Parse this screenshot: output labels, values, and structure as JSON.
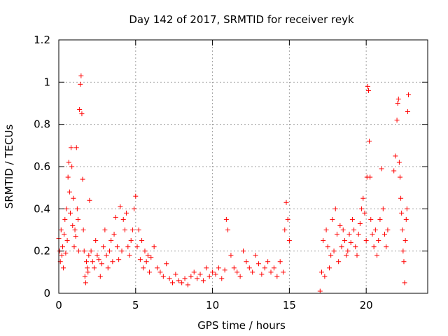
{
  "chart_data": {
    "type": "scatter",
    "title": "Day 142 of 2017, SRMTID for receiver reyk",
    "xlabel": "GPS time / hours",
    "ylabel": "SRMTID / TECUs",
    "xlim": [
      0,
      24
    ],
    "ylim": [
      0,
      1.2
    ],
    "xticks": [
      0,
      5,
      10,
      15,
      20
    ],
    "xtick_labels": [
      "0",
      "5",
      "10",
      "15",
      "20"
    ],
    "yticks": [
      0,
      0.2,
      0.4,
      0.6,
      0.8,
      1.0,
      1.2
    ],
    "ytick_labels": [
      "0",
      "0.2",
      "0.4",
      "0.6",
      "0.8",
      "1",
      "1.2"
    ],
    "grid": true,
    "marker": "plus",
    "color": "#ff0000",
    "series": [
      {
        "name": "SRMTID",
        "x": [
          0.0,
          0.05,
          0.1,
          0.15,
          0.2,
          0.25,
          0.3,
          0.35,
          0.4,
          0.45,
          0.5,
          0.55,
          0.6,
          0.65,
          0.7,
          0.75,
          0.8,
          0.85,
          0.9,
          0.95,
          1.0,
          1.05,
          1.1,
          1.15,
          1.2,
          1.25,
          1.3,
          1.35,
          1.4,
          1.45,
          1.5,
          1.55,
          1.6,
          1.65,
          1.7,
          1.75,
          1.8,
          1.85,
          1.9,
          1.95,
          2.0,
          2.1,
          2.2,
          2.3,
          2.4,
          2.5,
          2.6,
          2.7,
          2.8,
          2.9,
          3.0,
          3.1,
          3.2,
          3.3,
          3.4,
          3.5,
          3.6,
          3.7,
          3.8,
          3.9,
          4.0,
          4.1,
          4.2,
          4.3,
          4.4,
          4.5,
          4.6,
          4.7,
          4.8,
          4.9,
          5.0,
          5.1,
          5.2,
          5.3,
          5.4,
          5.5,
          5.6,
          5.7,
          5.8,
          5.9,
          6.0,
          6.2,
          6.4,
          6.6,
          6.8,
          7.0,
          7.2,
          7.4,
          7.6,
          7.8,
          8.0,
          8.2,
          8.4,
          8.6,
          8.8,
          9.0,
          9.2,
          9.4,
          9.6,
          9.8,
          10.0,
          10.2,
          10.4,
          10.6,
          10.8,
          10.9,
          11.0,
          11.2,
          11.4,
          11.6,
          11.8,
          12.0,
          12.2,
          12.4,
          12.6,
          12.8,
          13.0,
          13.2,
          13.4,
          13.6,
          13.8,
          14.0,
          14.2,
          14.4,
          14.6,
          14.7,
          14.8,
          14.9,
          15.0,
          17.0,
          17.1,
          17.2,
          17.3,
          17.4,
          17.5,
          17.6,
          17.7,
          17.8,
          17.9,
          18.0,
          18.1,
          18.2,
          18.3,
          18.4,
          18.5,
          18.6,
          18.7,
          18.8,
          18.9,
          19.0,
          19.1,
          19.2,
          19.3,
          19.4,
          19.5,
          19.6,
          19.7,
          19.8,
          19.9,
          20.0,
          20.05,
          20.1,
          20.15,
          20.2,
          20.25,
          20.3,
          20.4,
          20.5,
          20.6,
          20.7,
          20.8,
          20.9,
          21.0,
          21.1,
          21.2,
          21.3,
          21.4,
          21.8,
          21.9,
          22.0,
          22.05,
          22.1,
          22.15,
          22.2,
          22.25,
          22.3,
          22.35,
          22.4,
          22.45,
          22.5,
          22.55,
          22.6,
          22.65,
          22.7,
          22.75
        ],
        "y": [
          0.26,
          0.2,
          0.15,
          0.3,
          0.18,
          0.22,
          0.12,
          0.28,
          0.35,
          0.19,
          0.4,
          0.25,
          0.55,
          0.62,
          0.48,
          0.38,
          0.69,
          0.6,
          0.32,
          0.45,
          0.22,
          0.3,
          0.27,
          0.69,
          0.4,
          0.35,
          0.2,
          0.87,
          0.99,
          1.03,
          0.85,
          0.54,
          0.3,
          0.2,
          0.08,
          0.05,
          0.15,
          0.12,
          0.1,
          0.18,
          0.44,
          0.2,
          0.15,
          0.12,
          0.25,
          0.18,
          0.16,
          0.08,
          0.14,
          0.22,
          0.3,
          0.18,
          0.12,
          0.2,
          0.25,
          0.15,
          0.28,
          0.36,
          0.22,
          0.16,
          0.41,
          0.2,
          0.35,
          0.3,
          0.38,
          0.22,
          0.18,
          0.25,
          0.3,
          0.4,
          0.46,
          0.22,
          0.3,
          0.16,
          0.25,
          0.12,
          0.2,
          0.15,
          0.18,
          0.1,
          0.17,
          0.22,
          0.12,
          0.1,
          0.08,
          0.14,
          0.07,
          0.05,
          0.09,
          0.06,
          0.05,
          0.07,
          0.04,
          0.08,
          0.1,
          0.07,
          0.09,
          0.06,
          0.12,
          0.08,
          0.1,
          0.09,
          0.12,
          0.07,
          0.11,
          0.35,
          0.3,
          0.18,
          0.12,
          0.1,
          0.08,
          0.2,
          0.15,
          0.12,
          0.1,
          0.18,
          0.14,
          0.09,
          0.12,
          0.15,
          0.1,
          0.12,
          0.08,
          0.15,
          0.1,
          0.3,
          0.43,
          0.35,
          0.25,
          0.01,
          0.1,
          0.25,
          0.08,
          0.3,
          0.22,
          0.12,
          0.18,
          0.35,
          0.2,
          0.4,
          0.28,
          0.15,
          0.32,
          0.22,
          0.3,
          0.25,
          0.18,
          0.2,
          0.28,
          0.24,
          0.35,
          0.3,
          0.22,
          0.18,
          0.28,
          0.33,
          0.4,
          0.45,
          0.38,
          0.25,
          0.55,
          0.98,
          0.96,
          0.72,
          0.55,
          0.35,
          0.28,
          0.22,
          0.3,
          0.18,
          0.25,
          0.35,
          0.59,
          0.4,
          0.28,
          0.22,
          0.3,
          0.58,
          0.65,
          0.82,
          0.9,
          0.92,
          0.62,
          0.55,
          0.45,
          0.38,
          0.3,
          0.2,
          0.15,
          0.05,
          0.25,
          0.35,
          0.4,
          0.86,
          0.94
        ]
      }
    ]
  }
}
